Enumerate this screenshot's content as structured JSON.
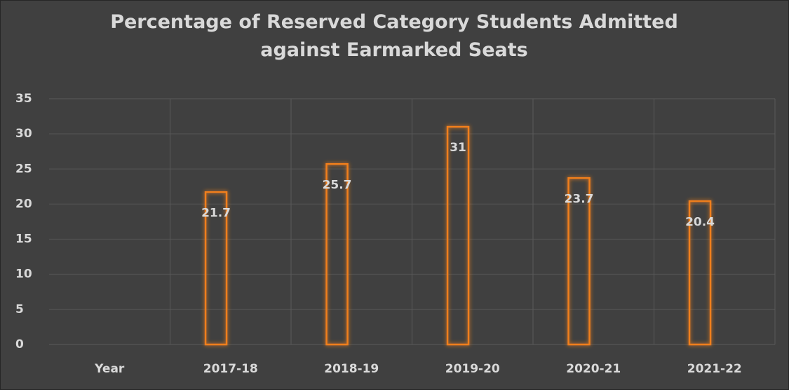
{
  "chart_data": {
    "type": "bar",
    "title": "Percentage of Reserved Category Students Admitted against Earmarked Seats",
    "categories": [
      "Year",
      "2017-18",
      "2018-19",
      "2019-20",
      "2020-21",
      "2021-22"
    ],
    "values": [
      null,
      21.7,
      25.7,
      31,
      23.7,
      20.4
    ],
    "color": "#f07f1f",
    "ylim": [
      0,
      35
    ],
    "yticks": [
      0,
      5,
      10,
      15,
      20,
      25,
      30,
      35
    ],
    "grid": true
  }
}
